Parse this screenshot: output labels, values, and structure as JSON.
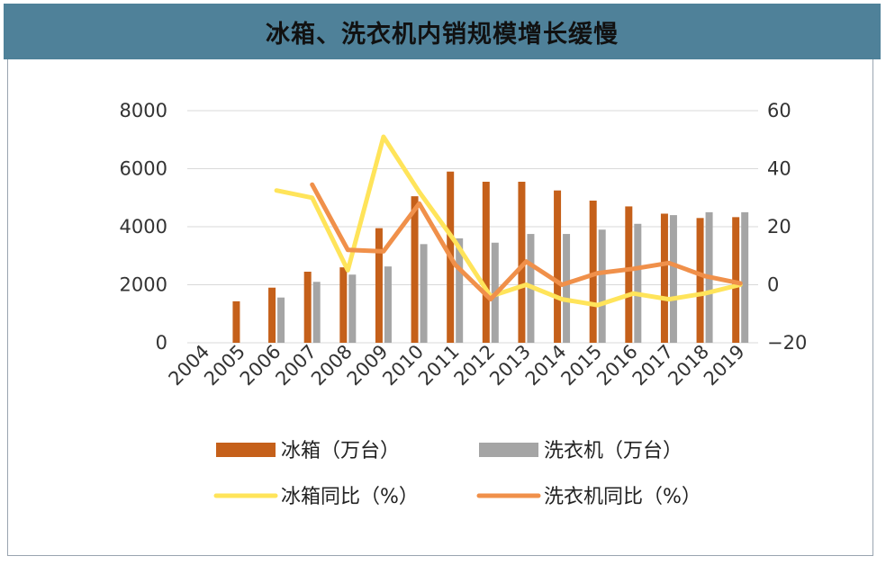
{
  "title": "冰箱、洗衣机内销规模增长缓慢",
  "chart_data": {
    "type": "bar",
    "categories": [
      "2004",
      "2005",
      "2006",
      "2007",
      "2008",
      "2009",
      "2010",
      "2011",
      "2012",
      "2013",
      "2014",
      "2015",
      "2016",
      "2017",
      "2018",
      "2019"
    ],
    "series": [
      {
        "name": "冰箱（万台）",
        "kind": "bar",
        "axis": "left",
        "color": "#c5601a",
        "values": [
          null,
          1430,
          1900,
          2450,
          2600,
          3950,
          5050,
          5900,
          5550,
          5550,
          5250,
          4900,
          4700,
          4450,
          4300,
          4330
        ]
      },
      {
        "name": "洗衣机（万台）",
        "kind": "bar",
        "axis": "left",
        "color": "#a5a5a5",
        "values": [
          null,
          null,
          1560,
          2100,
          2350,
          2630,
          3400,
          3600,
          3450,
          3750,
          3750,
          3900,
          4100,
          4400,
          4500,
          4500
        ]
      },
      {
        "name": "冰箱同比（%）",
        "kind": "line",
        "axis": "right",
        "color": "#ffe45a",
        "values": [
          null,
          null,
          32.5,
          30,
          5,
          51,
          32,
          15,
          -4,
          0,
          -5,
          -7,
          -3,
          -5,
          -3,
          0
        ]
      },
      {
        "name": "洗衣机同比（%）",
        "kind": "line",
        "axis": "right",
        "color": "#f0904a",
        "values": [
          null,
          null,
          null,
          34.5,
          12,
          11.5,
          28,
          7,
          -5,
          8,
          0,
          4,
          5.5,
          7.5,
          3,
          0.5
        ]
      }
    ],
    "y_left": {
      "min": 0,
      "max": 8000,
      "ticks": [
        0,
        2000,
        4000,
        6000,
        8000
      ]
    },
    "y_right": {
      "min": -20,
      "max": 60,
      "ticks": [
        -20,
        0,
        20,
        40,
        60
      ],
      "tick_labels": [
        "−20",
        "0",
        "20",
        "40",
        "60"
      ]
    },
    "grid": true,
    "legend_position": "bottom"
  }
}
